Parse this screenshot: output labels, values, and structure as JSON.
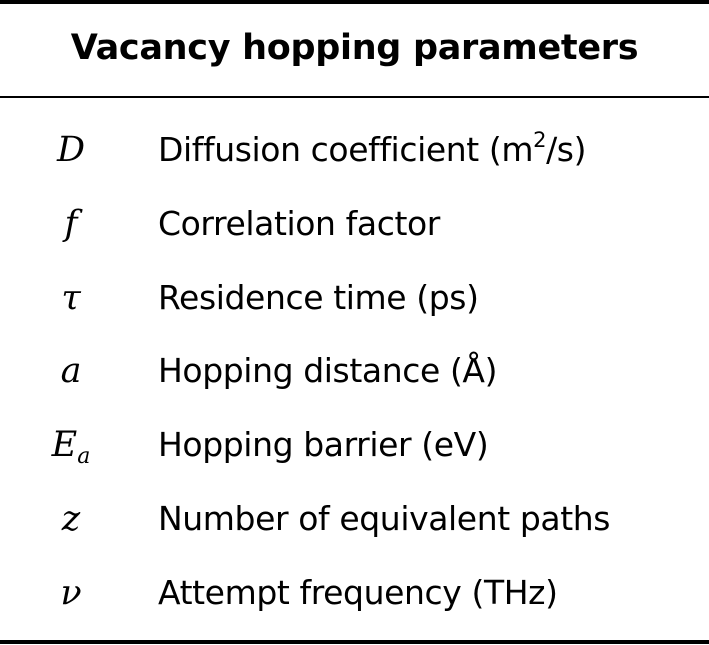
{
  "table": {
    "title": "Vacancy hopping parameters",
    "rows": [
      {
        "symbol": "D",
        "symbol_sub": "",
        "desc_before": "Diffusion coefficient (m",
        "desc_sup": "2",
        "desc_after": "/s)"
      },
      {
        "symbol": "f",
        "symbol_sub": "",
        "desc_before": "Correlation factor",
        "desc_sup": "",
        "desc_after": ""
      },
      {
        "symbol": "τ",
        "symbol_sub": "",
        "desc_before": "Residence time (ps)",
        "desc_sup": "",
        "desc_after": ""
      },
      {
        "symbol": "a",
        "symbol_sub": "",
        "desc_before": "Hopping distance (Å)",
        "desc_sup": "",
        "desc_after": ""
      },
      {
        "symbol": "E",
        "symbol_sub": "a",
        "desc_before": "Hopping barrier (eV)",
        "desc_sup": "",
        "desc_after": ""
      },
      {
        "symbol": "z",
        "symbol_sub": "",
        "desc_before": "Number of equivalent paths",
        "desc_sup": "",
        "desc_after": ""
      },
      {
        "symbol": "ν",
        "symbol_sub": "",
        "desc_before": "Attempt frequency (THz)",
        "desc_sup": "",
        "desc_after": ""
      }
    ]
  }
}
